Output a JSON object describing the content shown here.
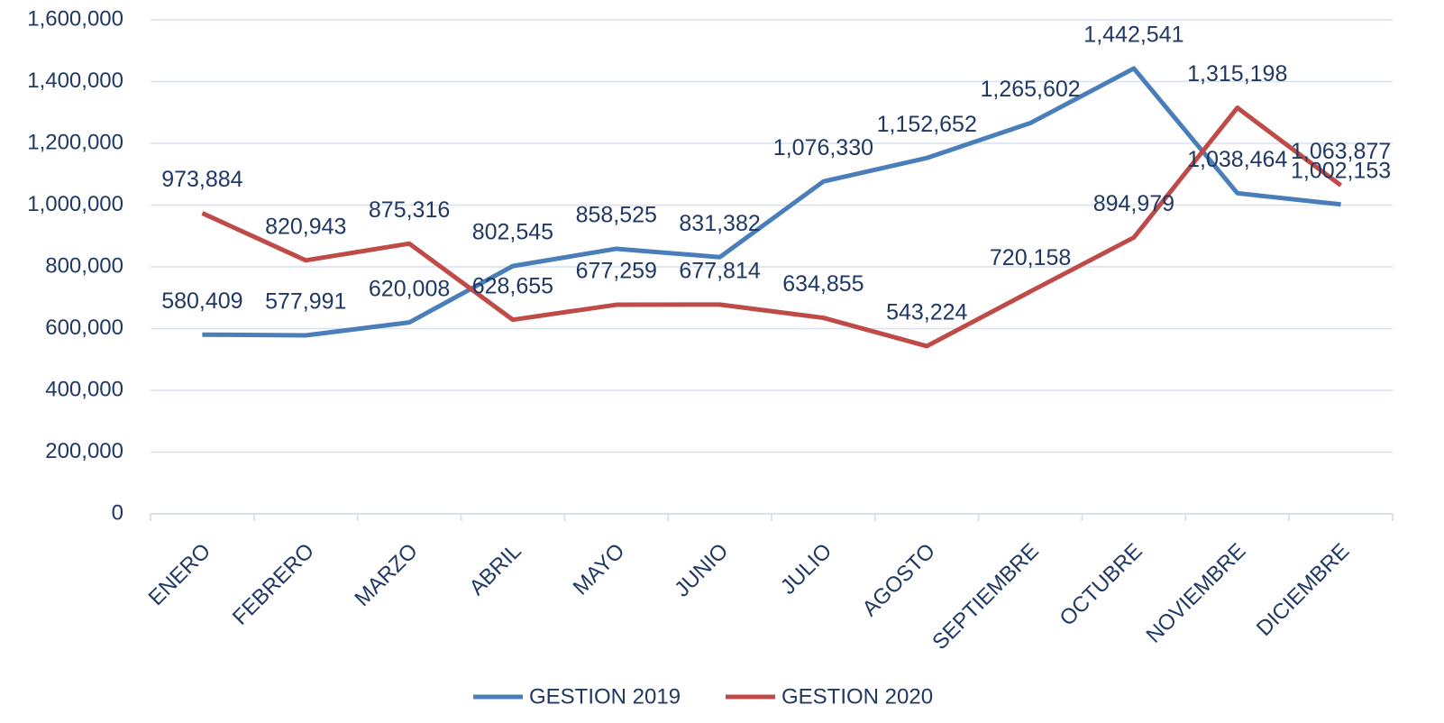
{
  "chart_data": {
    "type": "line",
    "categories": [
      "ENERO",
      "FEBRERO",
      "MARZO",
      "ABRIL",
      "MAYO",
      "JUNIO",
      "JULIO",
      "AGOSTO",
      "SEPTIEMBRE",
      "OCTUBRE",
      "NOVIEMBRE",
      "DICIEMBRE"
    ],
    "series": [
      {
        "name": "GESTION 2019",
        "color": "#4a7ebb",
        "values": [
          580409,
          577991,
          620008,
          802545,
          858525,
          831382,
          1076330,
          1152652,
          1265602,
          1442541,
          1038464,
          1002153
        ],
        "value_labels": [
          "580,409",
          "577,991",
          "620,008",
          "802,545",
          "858,525",
          "831,382",
          "1,076,330",
          "1,152,652",
          "1,265,602",
          "1,442,541",
          "1,038,464",
          "1,002,153"
        ]
      },
      {
        "name": "GESTION 2020",
        "color": "#be4b48",
        "values": [
          973884,
          820943,
          875316,
          628655,
          677259,
          677814,
          634855,
          543224,
          720158,
          894979,
          1315198,
          1063877
        ],
        "value_labels": [
          "973,884",
          "820,943",
          "875,316",
          "628,655",
          "677,259",
          "677,814",
          "634,855",
          "543,224",
          "720,158",
          "894,979",
          "1,315,198",
          "1,063,877"
        ]
      }
    ],
    "ylim": [
      0,
      1600000
    ],
    "yticks": [
      0,
      {
        "value": 200000,
        "label": "200,000"
      },
      {
        "value": 400000,
        "label": "400,000"
      },
      {
        "value": 600000,
        "label": "600,000"
      },
      {
        "value": 800000,
        "label": "800,000"
      },
      {
        "value": 1000000,
        "label": "1,000,000"
      },
      {
        "value": 1200000,
        "label": "1,200,000"
      },
      {
        "value": 1400000,
        "label": "1,400,000"
      },
      {
        "value": 1600000,
        "label": "1,600,000"
      }
    ],
    "grid": true,
    "legend": "bottom"
  }
}
